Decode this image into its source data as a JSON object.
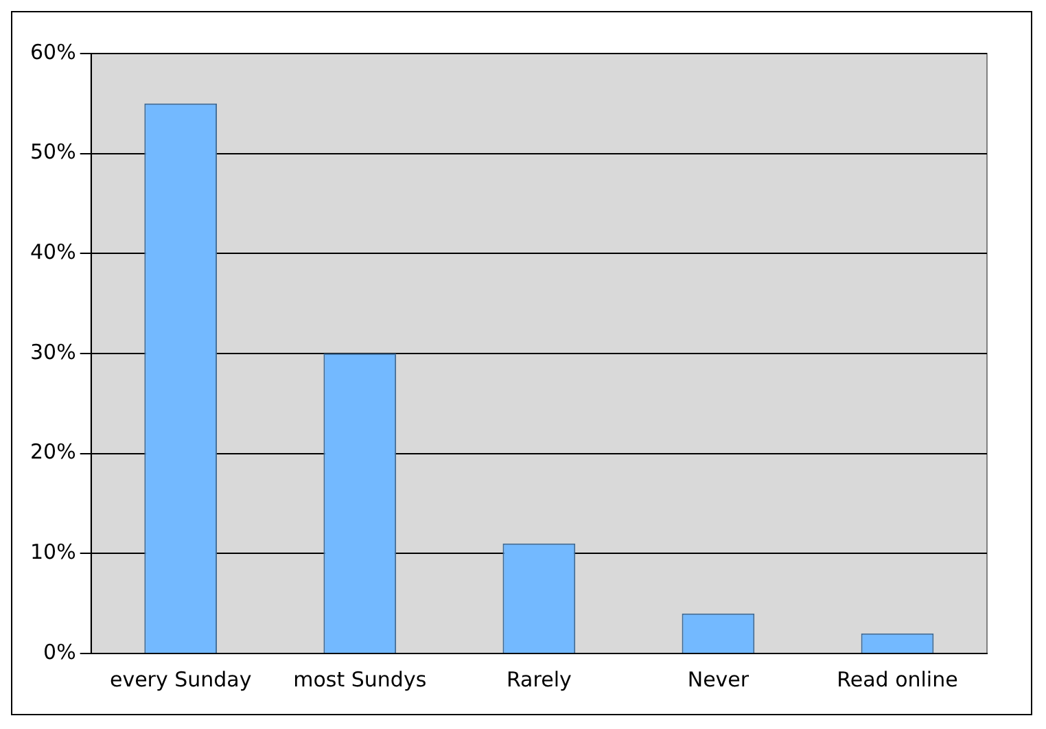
{
  "chart_data": {
    "type": "bar",
    "categories": [
      "every Sunday",
      "most Sundys",
      "Rarely",
      "Never",
      "Read online"
    ],
    "values": [
      55,
      30,
      11,
      4,
      2
    ],
    "color": "#73b9ff",
    "ylim": [
      0,
      60
    ],
    "yticks": [
      {
        "value": 0,
        "label": "0%"
      },
      {
        "value": 10,
        "label": "10%"
      },
      {
        "value": 20,
        "label": "20%"
      },
      {
        "value": 30,
        "label": "30%"
      },
      {
        "value": 40,
        "label": "40%"
      },
      {
        "value": 50,
        "label": "50%"
      },
      {
        "value": 60,
        "label": "60%"
      }
    ],
    "grid": "y",
    "legend": false
  }
}
